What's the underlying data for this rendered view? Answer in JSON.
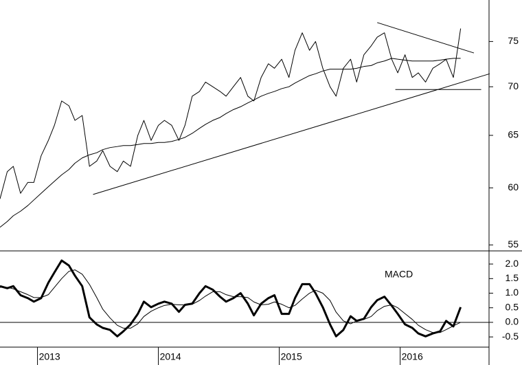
{
  "chart_data": [
    {
      "type": "line",
      "log": true,
      "xlim": [
        2012.69,
        2016.735
      ],
      "ylim": [
        54.5,
        79.9
      ],
      "yticks": [
        55,
        60,
        65,
        70,
        75
      ],
      "x": [
        2012.69,
        2012.75,
        2012.8,
        2012.86,
        2012.92,
        2012.97,
        2013.03,
        2013.09,
        2013.14,
        2013.2,
        2013.26,
        2013.31,
        2013.37,
        2013.43,
        2013.49,
        2013.54,
        2013.6,
        2013.66,
        2013.71,
        2013.77,
        2013.83,
        2013.88,
        2013.94,
        2014.0,
        2014.05,
        2014.11,
        2014.17,
        2014.22,
        2014.28,
        2014.34,
        2014.39,
        2014.45,
        2014.51,
        2014.56,
        2014.62,
        2014.68,
        2014.74,
        2014.79,
        2014.85,
        2014.91,
        2014.96,
        2015.02,
        2015.08,
        2015.13,
        2015.19,
        2015.25,
        2015.3,
        2015.36,
        2015.42,
        2015.47,
        2015.53,
        2015.59,
        2015.64,
        2015.7,
        2015.76,
        2015.81,
        2015.87,
        2015.93,
        2015.98,
        2016.04,
        2016.1,
        2016.15,
        2016.21,
        2016.27,
        2016.33,
        2016.38,
        2016.44,
        2016.5
      ],
      "series": [
        {
          "color": "#000000",
          "width": 1,
          "values": [
            59.0,
            61.5,
            62.0,
            59.5,
            60.5,
            60.5,
            63,
            64.5,
            66,
            68.5,
            68,
            66.5,
            67,
            62,
            62.5,
            63.5,
            62,
            61.5,
            62.5,
            62,
            65,
            66.5,
            64.5,
            66,
            66.5,
            66,
            64.5,
            66,
            69,
            69.5,
            70.5,
            70,
            69.5,
            69,
            70,
            71,
            69,
            68.5,
            71,
            72.5,
            72,
            73,
            71,
            74,
            76,
            74,
            75,
            72,
            70,
            69,
            72,
            73,
            70.5,
            73.5,
            74.5,
            75.5,
            76,
            73,
            71.5,
            73.5,
            71,
            71.5,
            70.5,
            72,
            72.5,
            73,
            71,
            76.5
          ]
        },
        {
          "color": "#000000",
          "width": 1,
          "values": [
            56.5,
            57.0,
            57.5,
            57.9,
            58.4,
            58.9,
            59.5,
            60.1,
            60.6,
            61.2,
            61.7,
            62.3,
            62.8,
            63.1,
            63.3,
            63.6,
            63.8,
            63.9,
            64.0,
            64.0,
            64.1,
            64.2,
            64.2,
            64.3,
            64.3,
            64.4,
            64.6,
            64.8,
            65.2,
            65.7,
            66.1,
            66.5,
            66.8,
            67.2,
            67.6,
            67.9,
            68.3,
            68.6,
            69.0,
            69.3,
            69.5,
            69.8,
            70.0,
            70.4,
            70.8,
            71.2,
            71.4,
            71.7,
            71.9,
            71.9,
            71.9,
            71.9,
            72.0,
            72.2,
            72.3,
            72.6,
            72.8,
            73.1,
            73.0,
            72.9,
            72.8,
            72.8,
            72.8,
            72.8,
            72.9,
            73.0,
            73.1,
            73.1
          ]
        }
      ],
      "lines": [
        {
          "x": [
            2013.46,
            2016.74
          ],
          "y": [
            59.4,
            71.4
          ]
        },
        {
          "x": [
            2015.81,
            2016.61
          ],
          "y": [
            77.2,
            73.7
          ]
        },
        {
          "x": [
            2015.96,
            2016.67
          ],
          "y": [
            69.7,
            69.7
          ]
        }
      ]
    },
    {
      "type": "line",
      "annotation": "MACD",
      "zero_line": true,
      "xlim": [
        2012.69,
        2016.735
      ],
      "xticks": [
        2013,
        2014,
        2015,
        2016
      ],
      "ylim": [
        -0.85,
        2.45
      ],
      "yticks": [
        {
          "value": 2,
          "label": "2.0"
        },
        1.5,
        {
          "value": 1,
          "label": "1.0"
        },
        0.5,
        {
          "value": 0,
          "label": "0.0"
        },
        -0.5
      ],
      "x": [
        2012.69,
        2012.75,
        2012.8,
        2012.86,
        2012.92,
        2012.97,
        2013.03,
        2013.09,
        2013.14,
        2013.2,
        2013.26,
        2013.31,
        2013.37,
        2013.43,
        2013.49,
        2013.54,
        2013.6,
        2013.66,
        2013.71,
        2013.77,
        2013.83,
        2013.88,
        2013.94,
        2014.0,
        2014.05,
        2014.11,
        2014.17,
        2014.22,
        2014.28,
        2014.34,
        2014.39,
        2014.45,
        2014.51,
        2014.56,
        2014.62,
        2014.68,
        2014.74,
        2014.79,
        2014.85,
        2014.91,
        2014.96,
        2015.02,
        2015.08,
        2015.13,
        2015.19,
        2015.25,
        2015.3,
        2015.36,
        2015.42,
        2015.47,
        2015.53,
        2015.59,
        2015.64,
        2015.7,
        2015.76,
        2015.81,
        2015.87,
        2015.93,
        2015.98,
        2016.04,
        2016.1,
        2016.15,
        2016.21,
        2016.27,
        2016.33,
        2016.38,
        2016.44,
        2016.5
      ],
      "series": [
        {
          "color": "#000000",
          "width": 3,
          "values": [
            1.24,
            1.17,
            1.24,
            0.93,
            0.83,
            0.71,
            0.83,
            1.36,
            1.71,
            2.12,
            1.95,
            1.6,
            1.24,
            0.17,
            -0.07,
            -0.19,
            -0.26,
            -0.48,
            -0.31,
            -0.07,
            0.29,
            0.71,
            0.52,
            0.64,
            0.71,
            0.64,
            0.36,
            0.6,
            0.64,
            1.0,
            1.24,
            1.12,
            0.88,
            0.71,
            0.83,
            1.0,
            0.64,
            0.24,
            0.64,
            0.83,
            0.93,
            0.29,
            0.29,
            0.83,
            1.31,
            1.31,
            1.0,
            0.52,
            -0.07,
            -0.48,
            -0.26,
            0.21,
            0.05,
            0.12,
            0.52,
            0.76,
            0.88,
            0.57,
            0.29,
            -0.07,
            -0.19,
            -0.38,
            -0.48,
            -0.38,
            -0.31,
            0.05,
            -0.14,
            0.52
          ]
        },
        {
          "color": "#000000",
          "width": 1,
          "values": [
            1.2,
            1.2,
            1.15,
            1.05,
            0.95,
            0.85,
            0.85,
            0.95,
            1.2,
            1.5,
            1.75,
            1.8,
            1.65,
            1.3,
            0.85,
            0.45,
            0.15,
            -0.1,
            -0.2,
            -0.2,
            -0.05,
            0.2,
            0.38,
            0.5,
            0.58,
            0.62,
            0.6,
            0.6,
            0.62,
            0.75,
            0.9,
            1.05,
            1.05,
            0.95,
            0.88,
            0.88,
            0.85,
            0.7,
            0.6,
            0.62,
            0.7,
            0.62,
            0.5,
            0.58,
            0.8,
            1.0,
            1.1,
            1.0,
            0.75,
            0.35,
            0.05,
            -0.05,
            0.05,
            0.1,
            0.2,
            0.4,
            0.55,
            0.6,
            0.5,
            0.3,
            0.1,
            -0.1,
            -0.25,
            -0.35,
            -0.35,
            -0.25,
            -0.12,
            0.0
          ]
        }
      ]
    }
  ]
}
